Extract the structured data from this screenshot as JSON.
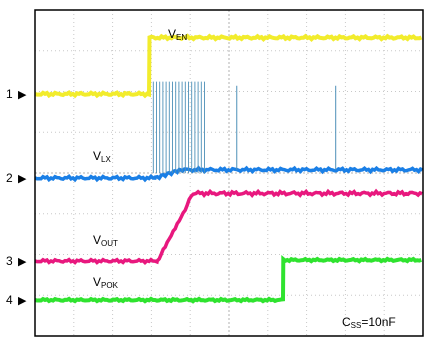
{
  "chart_data": {
    "type": "line",
    "grid": true,
    "divisions": {
      "x": 10,
      "y": 8
    },
    "colors": {
      "en": "#f2ec2c",
      "lx": "#1a7fe6",
      "lx_switch": "#4d90b8",
      "out": "#e8187e",
      "pok": "#2fe32f"
    },
    "series": [
      {
        "key": "en",
        "channel": "1",
        "label_main": "V",
        "label_sub": "EN",
        "low": 0.0,
        "high": 2.75,
        "edge_div": 2.95
      },
      {
        "key": "lx",
        "channel": "2",
        "label_main": "V",
        "label_sub": "LX",
        "start_div": 3.1,
        "end_div": 3.75,
        "level": 0.4,
        "switch_start_div": 3.05,
        "switch_end_div": 4.45,
        "switch_top": 4.7,
        "spike_divs": [
          5.2,
          7.75
        ],
        "spike_top": 4.5
      },
      {
        "key": "out",
        "channel": "3",
        "label_main": "V",
        "label_sub": "OUT",
        "low": 0.0,
        "ramp_start_div": 3.15,
        "ramp_end_div": 4.1,
        "high": 3.3
      },
      {
        "key": "pok",
        "channel": "4",
        "label_main": "V",
        "label_sub": "POK",
        "low": 0.0,
        "high": 1.95,
        "edge_div": 6.4
      }
    ],
    "annotation": {
      "main": "C",
      "sub": "SS",
      "rest": "=10nF"
    },
    "marker_glyph": "▶"
  }
}
